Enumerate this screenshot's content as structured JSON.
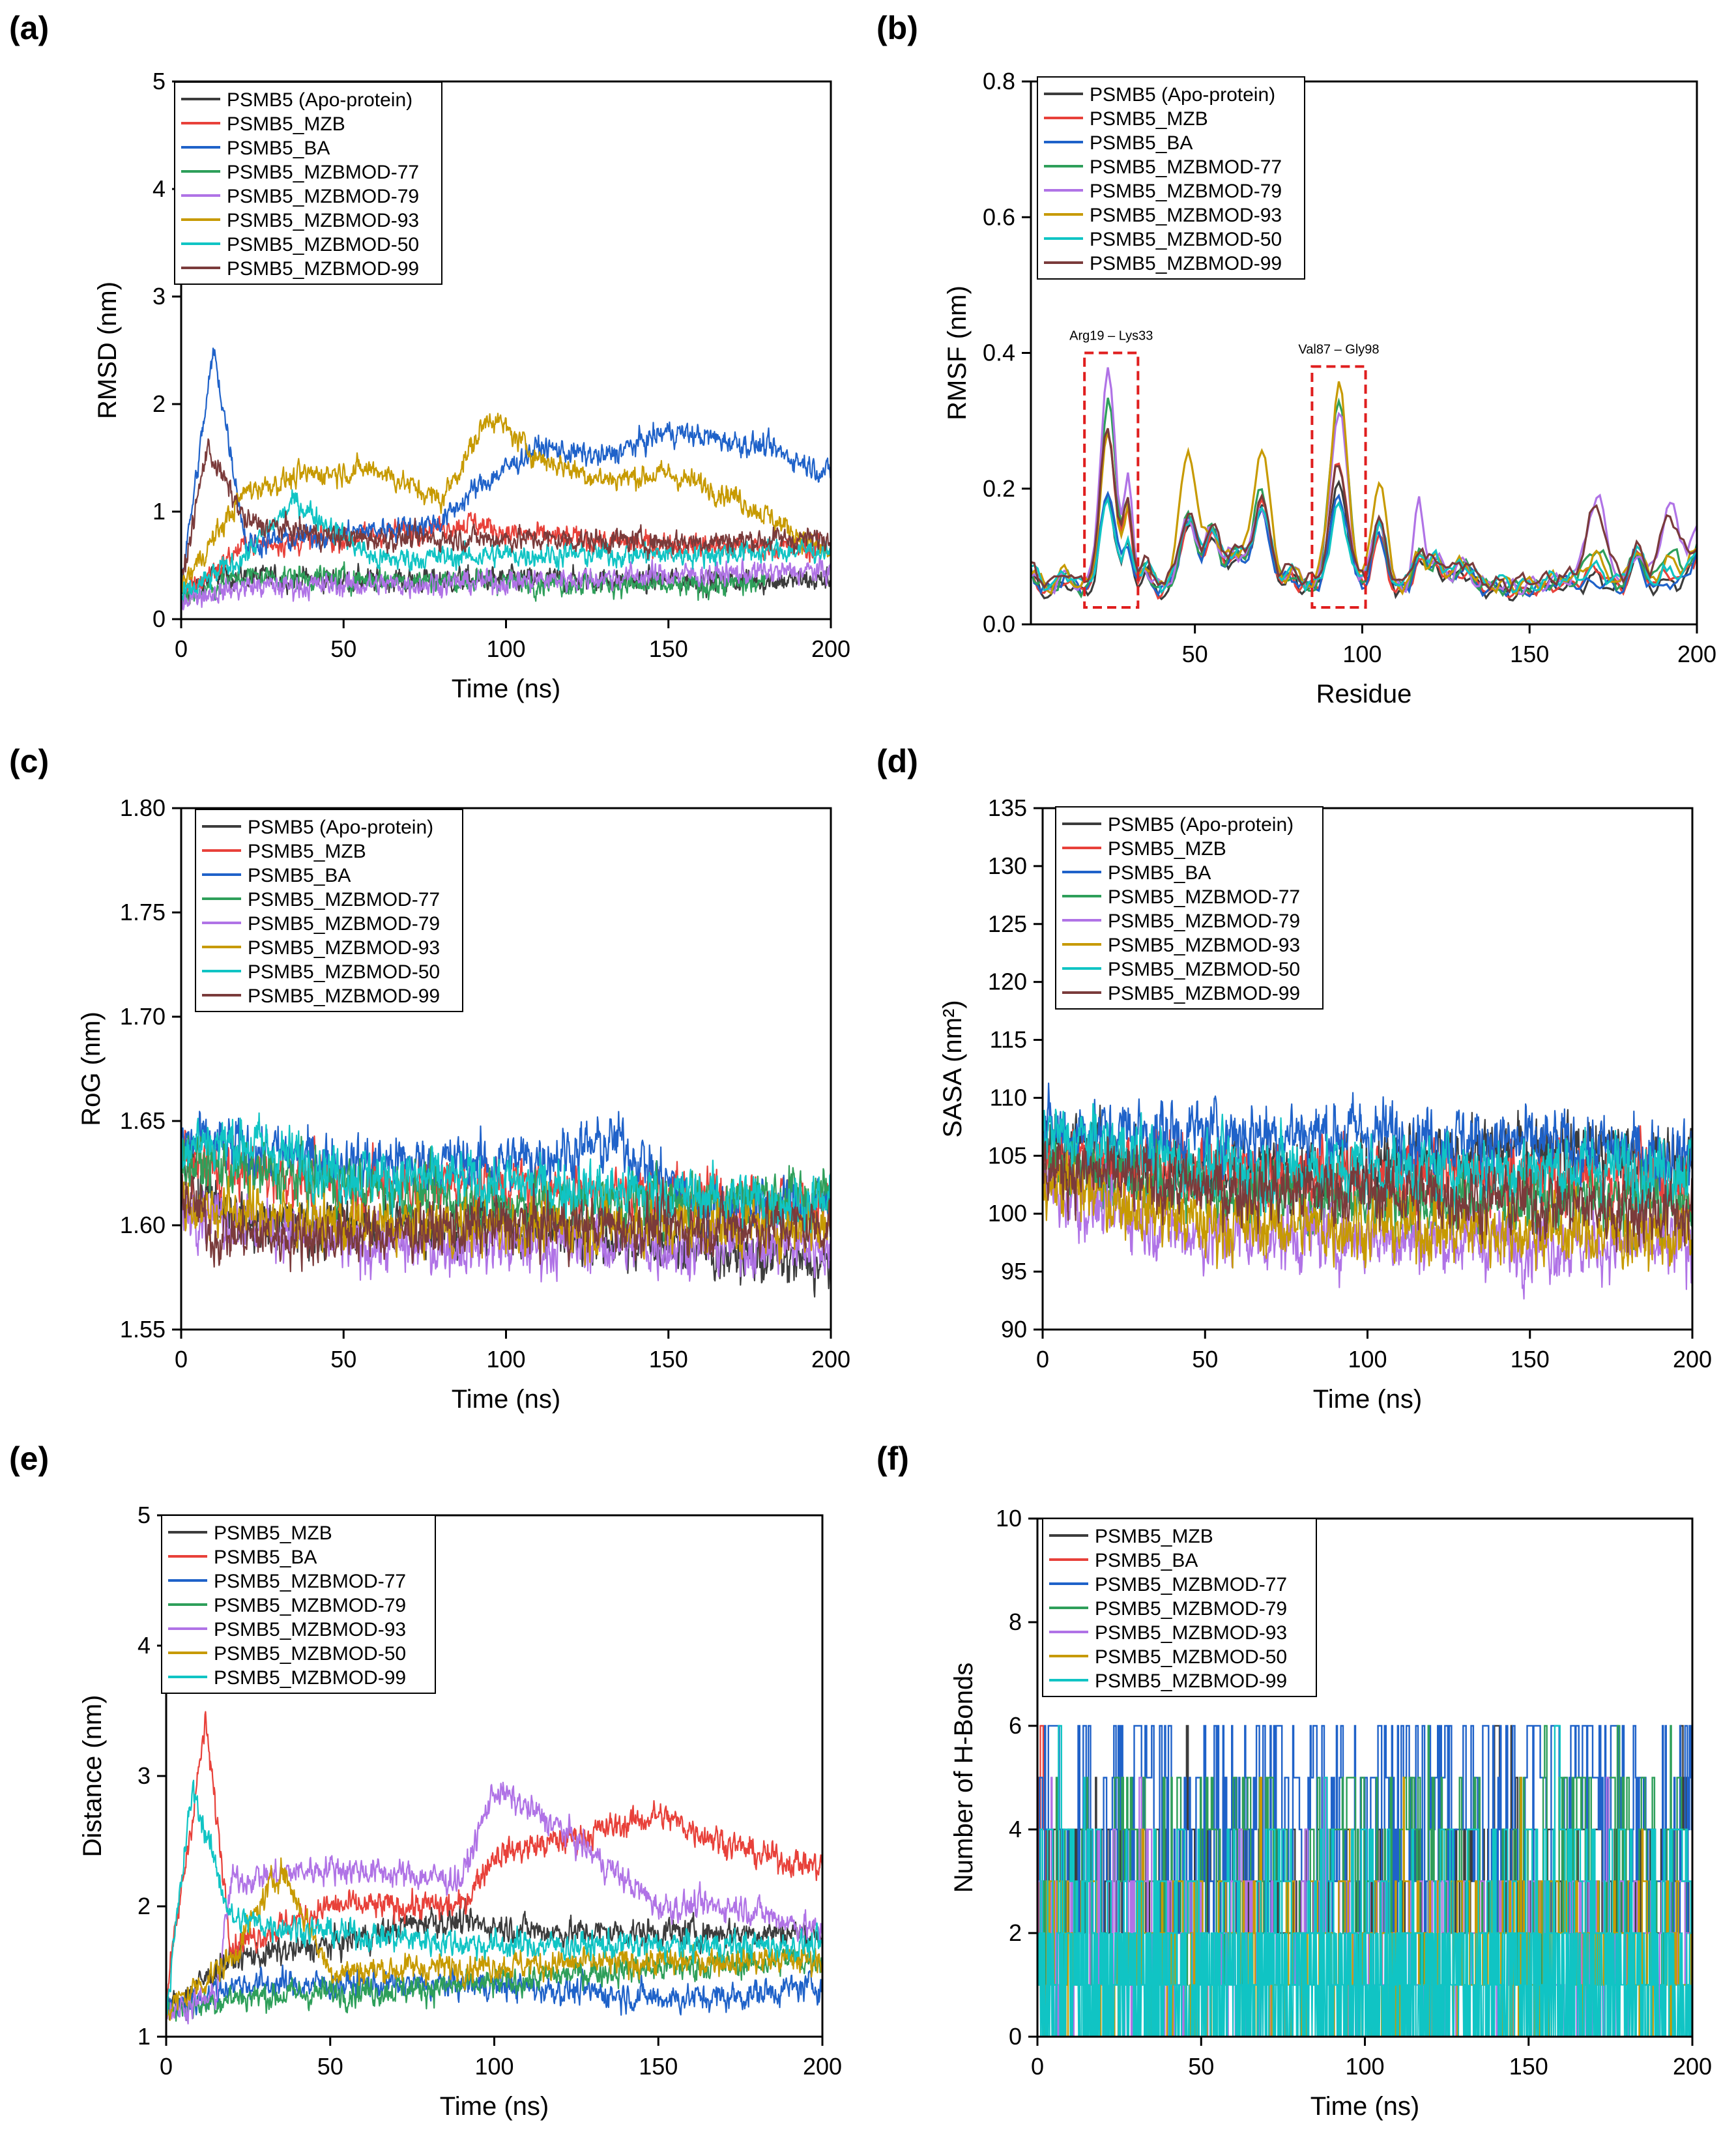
{
  "legend_colors": {
    "PSMB5 (Apo-protein)": "#3c3c3c",
    "PSMB5_MZB": "#e8413a",
    "PSMB5_BA": "#1f62c9",
    "PSMB5_MZBMOD-77": "#2e9f5a",
    "PSMB5_MZBMOD-79": "#b073e6",
    "PSMB5_MZBMOD-93": "#c79a00",
    "PSMB5_MZBMOD-50": "#10c4c4",
    "PSMB5_MZBMOD-99": "#7a3b3b"
  },
  "chart_data": [
    {
      "panel": "(a)",
      "type": "line",
      "xlabel": "Time (ns)",
      "ylabel": "RMSD (nm)",
      "xlim": [
        0,
        200
      ],
      "ylim": [
        0,
        5
      ],
      "xticks": [
        "0",
        "50",
        "100",
        "150",
        "200"
      ],
      "yticks": [
        "0",
        "1",
        "2",
        "3",
        "4",
        "5"
      ],
      "legend": "top-left",
      "series": [
        {
          "name": "PSMB5 (Apo-protein)",
          "color": "#3c3c3c",
          "x": [
            0,
            10,
            30,
            60,
            100,
            140,
            200
          ],
          "y": [
            0.2,
            0.4,
            0.38,
            0.36,
            0.37,
            0.36,
            0.36
          ]
        },
        {
          "name": "PSMB5_MZB",
          "color": "#e8413a",
          "x": [
            0,
            20,
            50,
            90,
            100,
            130,
            160,
            200
          ],
          "y": [
            0.2,
            0.7,
            0.75,
            0.9,
            0.8,
            0.72,
            0.68,
            0.65
          ]
        },
        {
          "name": "PSMB5_BA",
          "color": "#1f62c9",
          "x": [
            0,
            10,
            20,
            50,
            80,
            90,
            100,
            110,
            130,
            150,
            180,
            200
          ],
          "y": [
            0.3,
            2.5,
            0.7,
            0.8,
            0.9,
            1.2,
            1.4,
            1.6,
            1.5,
            1.75,
            1.6,
            1.35
          ]
        },
        {
          "name": "PSMB5_MZBMOD-77",
          "color": "#2e9f5a",
          "x": [
            0,
            20,
            50,
            80,
            110,
            150,
            180
          ],
          "y": [
            0.2,
            0.4,
            0.38,
            0.36,
            0.35,
            0.3,
            0.33
          ]
        },
        {
          "name": "PSMB5_MZBMOD-79",
          "color": "#b073e6",
          "x": [
            0,
            20,
            60,
            100,
            140,
            200
          ],
          "y": [
            0.2,
            0.3,
            0.32,
            0.35,
            0.4,
            0.45
          ]
        },
        {
          "name": "PSMB5_MZBMOD-93",
          "color": "#c79a00",
          "x": [
            0,
            20,
            40,
            60,
            80,
            95,
            110,
            130,
            150,
            170,
            200
          ],
          "y": [
            0.3,
            1.2,
            1.35,
            1.4,
            1.1,
            1.9,
            1.5,
            1.3,
            1.35,
            1.15,
            0.6
          ]
        },
        {
          "name": "PSMB5_MZBMOD-50",
          "color": "#10c4c4",
          "x": [
            0,
            20,
            35,
            60,
            100,
            150,
            200
          ],
          "y": [
            0.2,
            0.6,
            1.1,
            0.55,
            0.6,
            0.6,
            0.65
          ]
        },
        {
          "name": "PSMB5_MZBMOD-99",
          "color": "#7a3b3b",
          "x": [
            0,
            8,
            20,
            50,
            100,
            150,
            200
          ],
          "y": [
            0.3,
            1.6,
            0.9,
            0.75,
            0.75,
            0.72,
            0.75
          ]
        }
      ]
    },
    {
      "panel": "(b)",
      "type": "line",
      "xlabel": "Residue",
      "ylabel": "RMSF (nm)",
      "xlim": [
        1,
        200
      ],
      "ylim": [
        0,
        0.8
      ],
      "xticks": [
        "50",
        "100",
        "150",
        "200"
      ],
      "yticks": [
        "0.0",
        "0.2",
        "0.4",
        "0.6",
        "0.8"
      ],
      "legend": "top-left",
      "annotations": [
        {
          "label": "Arg19 – Lys33",
          "x_range": [
            17,
            33
          ],
          "y_range": [
            0.025,
            0.4
          ]
        },
        {
          "label": "Val87 – Gly98",
          "x_range": [
            85,
            101
          ],
          "y_range": [
            0.025,
            0.38
          ]
        }
      ],
      "series": [
        {
          "name": "PSMB5 (Apo-protein)",
          "color": "#3c3c3c",
          "peak1": 0.19,
          "peak2": 0.22,
          "peak3": 0.19,
          "peak4": 0.16,
          "tail": 0.08
        },
        {
          "name": "PSMB5_MZB",
          "color": "#e8413a",
          "peak1": 0.29,
          "peak2": 0.25,
          "peak3": 0.19,
          "peak4": 0.14,
          "tail": 0.09
        },
        {
          "name": "PSMB5_BA",
          "color": "#1f62c9",
          "peak1": 0.2,
          "peak2": 0.2,
          "peak3": 0.17,
          "peak4": 0.14,
          "tail": 0.07
        },
        {
          "name": "PSMB5_MZBMOD-77",
          "color": "#2e9f5a",
          "peak1": 0.33,
          "peak2": 0.34,
          "peak3": 0.2,
          "peak4": 0.16,
          "tail": 0.12
        },
        {
          "name": "PSMB5_MZBMOD-79",
          "color": "#b073e6",
          "peak1": 0.37,
          "peak2": 0.32,
          "peak3": 0.18,
          "peak4": 0.16,
          "tail": 0.19
        },
        {
          "name": "PSMB5_MZBMOD-93",
          "color": "#c79a00",
          "peak1": 0.27,
          "peak2": 0.35,
          "peak3": 0.26,
          "peak4": 0.22,
          "tail": 0.1
        },
        {
          "name": "PSMB5_MZBMOD-50",
          "color": "#10c4c4",
          "peak1": 0.17,
          "peak2": 0.17,
          "peak3": 0.17,
          "peak4": 0.15,
          "tail": 0.08
        },
        {
          "name": "PSMB5_MZBMOD-99",
          "color": "#7a3b3b",
          "peak1": 0.28,
          "peak2": 0.23,
          "peak3": 0.18,
          "peak4": 0.15,
          "tail": 0.17
        }
      ]
    },
    {
      "panel": "(c)",
      "type": "line",
      "xlabel": "Time (ns)",
      "ylabel": "RoG (nm)",
      "xlim": [
        0,
        200
      ],
      "ylim": [
        1.55,
        1.8
      ],
      "xticks": [
        "0",
        "50",
        "100",
        "150",
        "200"
      ],
      "yticks": [
        "1.55",
        "1.60",
        "1.65",
        "1.70",
        "1.75",
        "1.80"
      ],
      "legend": "top-left",
      "series": [
        {
          "name": "PSMB5 (Apo-protein)",
          "color": "#3c3c3c",
          "x": [
            0,
            20,
            100,
            200
          ],
          "y": [
            1.63,
            1.6,
            1.6,
            1.58
          ]
        },
        {
          "name": "PSMB5_MZB",
          "color": "#e8413a",
          "x": [
            0,
            50,
            100,
            200
          ],
          "y": [
            1.63,
            1.62,
            1.62,
            1.61
          ]
        },
        {
          "name": "PSMB5_BA",
          "color": "#1f62c9",
          "x": [
            0,
            50,
            100,
            135,
            150,
            160,
            200
          ],
          "y": [
            1.64,
            1.63,
            1.63,
            1.64,
            1.62,
            1.61,
            1.61
          ]
        },
        {
          "name": "PSMB5_MZBMOD-77",
          "color": "#2e9f5a",
          "x": [
            0,
            50,
            100,
            200
          ],
          "y": [
            1.63,
            1.62,
            1.61,
            1.615
          ]
        },
        {
          "name": "PSMB5_MZBMOD-79",
          "color": "#b073e6",
          "x": [
            0,
            50,
            100,
            200
          ],
          "y": [
            1.61,
            1.59,
            1.59,
            1.59
          ]
        },
        {
          "name": "PSMB5_MZBMOD-93",
          "color": "#c79a00",
          "x": [
            0,
            50,
            100,
            200
          ],
          "y": [
            1.61,
            1.6,
            1.6,
            1.6
          ]
        },
        {
          "name": "PSMB5_MZBMOD-50",
          "color": "#10c4c4",
          "x": [
            0,
            20,
            50,
            100,
            200
          ],
          "y": [
            1.64,
            1.64,
            1.625,
            1.62,
            1.61
          ]
        },
        {
          "name": "PSMB5_MZBMOD-99",
          "color": "#7a3b3b",
          "x": [
            0,
            10,
            50,
            100,
            200
          ],
          "y": [
            1.62,
            1.595,
            1.595,
            1.6,
            1.6
          ]
        }
      ]
    },
    {
      "panel": "(d)",
      "type": "line",
      "xlabel": "Time (ns)",
      "ylabel": "SASA (nm²)",
      "xlim": [
        0,
        200
      ],
      "ylim": [
        90,
        135
      ],
      "xticks": [
        "0",
        "50",
        "100",
        "150",
        "200"
      ],
      "yticks": [
        "90",
        "95",
        "100",
        "105",
        "110",
        "115",
        "120",
        "125",
        "130",
        "135"
      ],
      "legend": "top-left",
      "series": [
        {
          "name": "PSMB5 (Apo-protein)",
          "color": "#3c3c3c",
          "x": [
            0,
            50,
            100,
            160,
            200
          ],
          "y": [
            106,
            104,
            104,
            106,
            104
          ]
        },
        {
          "name": "PSMB5_MZB",
          "color": "#e8413a",
          "x": [
            0,
            50,
            100,
            200
          ],
          "y": [
            105,
            104,
            103,
            103
          ]
        },
        {
          "name": "PSMB5_BA",
          "color": "#1f62c9",
          "x": [
            0,
            50,
            100,
            150,
            200
          ],
          "y": [
            107,
            107,
            107,
            106,
            105
          ]
        },
        {
          "name": "PSMB5_MZBMOD-77",
          "color": "#2e9f5a",
          "x": [
            0,
            50,
            100,
            200
          ],
          "y": [
            104,
            102,
            101,
            101
          ]
        },
        {
          "name": "PSMB5_MZBMOD-79",
          "color": "#b073e6",
          "x": [
            0,
            50,
            100,
            200
          ],
          "y": [
            102,
            98,
            98,
            97
          ]
        },
        {
          "name": "PSMB5_MZBMOD-93",
          "color": "#c79a00",
          "x": [
            0,
            50,
            100,
            200
          ],
          "y": [
            103,
            99,
            99,
            98
          ]
        },
        {
          "name": "PSMB5_MZBMOD-50",
          "color": "#10c4c4",
          "x": [
            0,
            50,
            100,
            160,
            200
          ],
          "y": [
            107,
            104,
            104,
            104,
            104
          ]
        },
        {
          "name": "PSMB5_MZBMOD-99",
          "color": "#7a3b3b",
          "x": [
            0,
            50,
            100,
            200
          ],
          "y": [
            104,
            102,
            102,
            100
          ]
        }
      ]
    },
    {
      "panel": "(e)",
      "type": "line",
      "xlabel": "Time (ns)",
      "ylabel": "Distance (nm)",
      "xlim": [
        0,
        200
      ],
      "ylim": [
        1,
        5
      ],
      "xticks": [
        "0",
        "50",
        "100",
        "150",
        "200"
      ],
      "yticks": [
        "1",
        "2",
        "3",
        "4",
        "5"
      ],
      "legend": "top-left",
      "series": [
        {
          "name": "PSMB5_MZB",
          "color": "#3c3c3c",
          "x": [
            0,
            20,
            50,
            80,
            120,
            200
          ],
          "y": [
            1.2,
            1.6,
            1.7,
            1.9,
            1.8,
            1.8
          ]
        },
        {
          "name": "PSMB5_BA",
          "color": "#e8413a",
          "x": [
            0,
            12,
            20,
            50,
            90,
            100,
            120,
            150,
            180,
            200
          ],
          "y": [
            1.3,
            3.4,
            1.7,
            2.0,
            2.0,
            2.4,
            2.5,
            2.7,
            2.4,
            2.3
          ]
        },
        {
          "name": "PSMB5_MZBMOD-77",
          "color": "#1f62c9",
          "x": [
            0,
            20,
            60,
            100,
            150,
            170,
            200
          ],
          "y": [
            1.2,
            1.4,
            1.4,
            1.4,
            1.3,
            1.3,
            1.4
          ]
        },
        {
          "name": "PSMB5_MZBMOD-79",
          "color": "#2e9f5a",
          "x": [
            0,
            20,
            60,
            100,
            130,
            170,
            200
          ],
          "y": [
            1.2,
            1.3,
            1.35,
            1.4,
            1.5,
            1.55,
            1.6
          ]
        },
        {
          "name": "PSMB5_MZBMOD-93",
          "color": "#b073e6",
          "x": [
            0,
            15,
            20,
            50,
            90,
            100,
            120,
            150,
            175,
            200
          ],
          "y": [
            1.2,
            1.3,
            2.2,
            2.3,
            2.2,
            2.9,
            2.6,
            2.0,
            2.0,
            1.8
          ]
        },
        {
          "name": "PSMB5_MZBMOD-50",
          "color": "#c79a00",
          "x": [
            0,
            20,
            35,
            50,
            100,
            200
          ],
          "y": [
            1.2,
            1.6,
            2.3,
            1.5,
            1.55,
            1.6
          ]
        },
        {
          "name": "PSMB5_MZBMOD-99",
          "color": "#10c4c4",
          "x": [
            0,
            8,
            20,
            50,
            100,
            200
          ],
          "y": [
            1.2,
            2.9,
            1.9,
            1.8,
            1.7,
            1.7
          ]
        }
      ]
    },
    {
      "panel": "(f)",
      "type": "line",
      "xlabel": "Time (ns)",
      "ylabel": "Number of H-Bonds",
      "xlim": [
        0,
        200
      ],
      "ylim": [
        0,
        10
      ],
      "xticks": [
        "0",
        "50",
        "100",
        "150",
        "200"
      ],
      "yticks": [
        "0",
        "2",
        "4",
        "6",
        "8",
        "10"
      ],
      "legend": "top-left",
      "series": [
        {
          "name": "PSMB5_MZB",
          "color": "#3c3c3c",
          "typical": [
            2,
            4
          ]
        },
        {
          "name": "PSMB5_BA",
          "color": "#e8413a",
          "typical": [
            0,
            6
          ]
        },
        {
          "name": "PSMB5_MZBMOD-77",
          "color": "#1f62c9",
          "typical": [
            2,
            6
          ]
        },
        {
          "name": "PSMB5_MZBMOD-79",
          "color": "#2e9f5a",
          "typical": [
            1,
            5
          ]
        },
        {
          "name": "PSMB5_MZBMOD-93",
          "color": "#b073e6",
          "typical": [
            0,
            3
          ]
        },
        {
          "name": "PSMB5_MZBMOD-50",
          "color": "#c79a00",
          "typical": [
            0,
            3
          ]
        },
        {
          "name": "PSMB5_MZBMOD-99",
          "color": "#10c4c4",
          "typical": [
            0,
            4
          ]
        }
      ]
    }
  ]
}
